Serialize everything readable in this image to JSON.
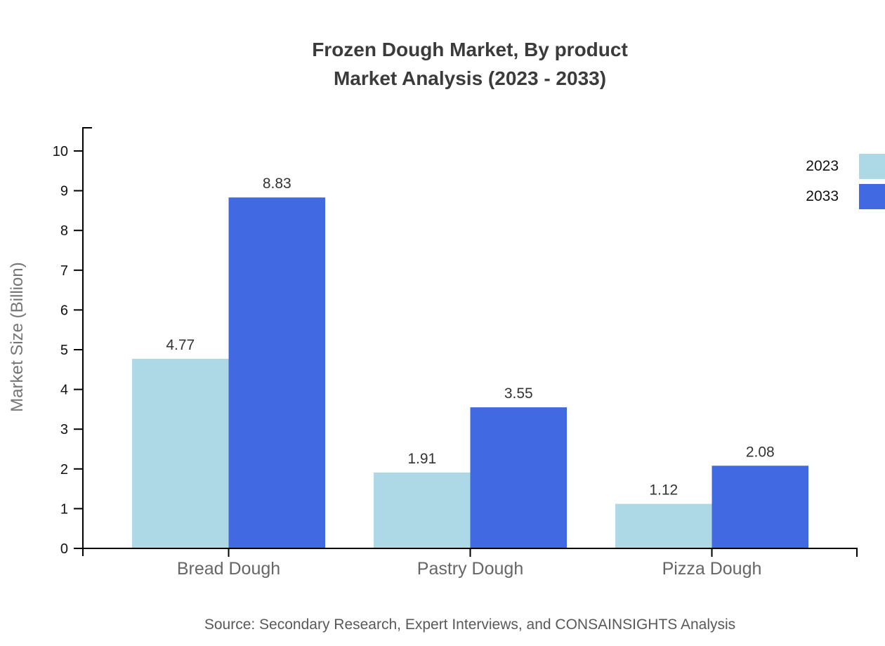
{
  "title": {
    "line1": "Frozen Dough Market, By product",
    "line2": "Market Analysis (2023 - 2033)"
  },
  "chart_data": {
    "type": "bar",
    "title": "Frozen Dough Market, By product Market Analysis (2023 - 2033)",
    "categories": [
      "Bread Dough",
      "Pastry Dough",
      "Pizza Dough"
    ],
    "series": [
      {
        "name": "2023",
        "color": "#ADD8E6",
        "values": [
          4.77,
          1.91,
          1.12
        ]
      },
      {
        "name": "2033",
        "color": "#4169E1",
        "values": [
          8.83,
          3.55,
          2.08
        ]
      }
    ],
    "xlabel": "",
    "ylabel": "Market Size (Billion)",
    "ylim": [
      0,
      10
    ],
    "ytick_step": 1,
    "grid": false,
    "legend_position": "top-right",
    "value_labels_shown": true
  },
  "source": {
    "text": "Source: Secondary Research, Expert Interviews, and CONSAINSIGHTS Analysis"
  },
  "colors": {
    "series_2023": "#ADD8E6",
    "series_2033": "#4169E1",
    "axis": "#000000",
    "title_text": "#3b3b3b",
    "value_label": "#333333",
    "category_label": "#666666",
    "y_axis_title": "#757575",
    "source_text": "#595959"
  }
}
